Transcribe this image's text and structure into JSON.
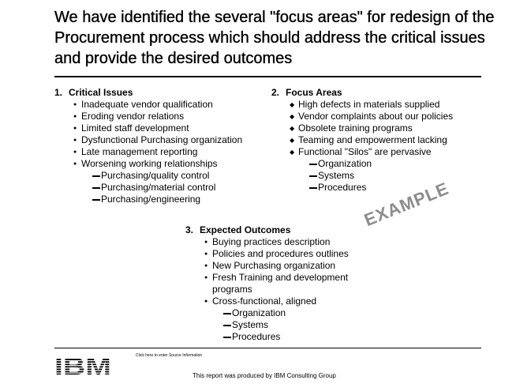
{
  "title": "We have identified the several \"focus areas\" for redesign of the Procurement process which should address the critical issues and provide the desired outcomes",
  "sections": {
    "critical": {
      "number": "1.",
      "heading": "Critical Issues",
      "items": [
        "Inadequate vendor qualification",
        "Eroding vendor relations",
        "Limited staff development",
        "Dysfunctional Purchasing organization",
        "Late management reporting",
        "Worsening working relationships"
      ],
      "subitems": [
        "Purchasing/quality control",
        "Purchasing/material control",
        "Purchasing/engineering"
      ]
    },
    "focus": {
      "number": "2.",
      "heading": "Focus Areas",
      "items": [
        "High defects in materials supplied",
        "Vendor complaints about our policies",
        "Obsolete training programs",
        "Teaming and empowerment lacking",
        "Functional \"Silos\" are pervasive"
      ],
      "subitems": [
        "Organization",
        "Systems",
        "Procedures"
      ]
    },
    "outcomes": {
      "number": "3.",
      "heading": "Expected Outcomes",
      "items": [
        "Buying practices description",
        "Policies and procedures outlines",
        "New Purchasing organization",
        "Fresh Training and development",
        "Cross-functional, aligned"
      ],
      "item_continuation": "programs",
      "subitems": [
        "Organization",
        "Systems",
        "Procedures"
      ]
    }
  },
  "stamp": "EXAMPLE",
  "logo": {
    "text": "IBM",
    "icon": "ibm-striped-logo-icon",
    "color": "#000000"
  },
  "source_note": "Click here to enter Source Information",
  "footer": "This report was produced by IBM Consulting Group",
  "colors": {
    "text": "#000000",
    "stamp": "#8c8c8c",
    "background": "#ffffff"
  }
}
